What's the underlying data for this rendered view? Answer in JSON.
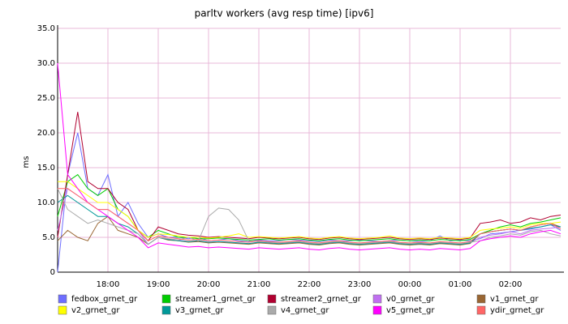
{
  "chart_data": {
    "type": "line",
    "title": "parltv workers (avg resp time) [ipv6]",
    "y_label": "ms",
    "categories": [
      null,
      null,
      null,
      null,
      null,
      "18:00",
      null,
      null,
      null,
      null,
      "19:00",
      null,
      null,
      null,
      null,
      "20:00",
      null,
      null,
      null,
      null,
      "21:00",
      null,
      null,
      null,
      null,
      "22:00",
      null,
      null,
      null,
      null,
      "23:00",
      null,
      null,
      null,
      null,
      "00:00",
      null,
      null,
      null,
      null,
      "01:00",
      null,
      null,
      null,
      null,
      "02:00",
      null,
      null,
      null,
      null,
      null
    ],
    "ylim": [
      0,
      35
    ],
    "yticks": [
      0,
      {
        "value": 5,
        "label": "5.0"
      },
      {
        "value": 10,
        "label": "10.0"
      },
      {
        "value": 15,
        "label": "15.0"
      },
      {
        "value": 20,
        "label": "20.0"
      },
      {
        "value": 25,
        "label": "25.0"
      },
      {
        "value": 30,
        "label": "30.0"
      },
      {
        "value": 35,
        "label": "35.0"
      }
    ],
    "grid": true,
    "series": [
      {
        "name": "fedbox_grnet_gr",
        "color": "#6e6eff",
        "values": [
          0,
          14,
          20,
          12,
          11,
          14,
          8,
          10,
          7,
          5,
          5.5,
          5,
          5,
          4.8,
          5,
          4.5,
          4.6,
          4.8,
          4.5,
          4.4,
          4.6,
          4.5,
          4.5,
          4.7,
          4.6,
          4.5,
          4.4,
          4.6,
          4.5,
          4.5,
          4.6,
          4.5,
          4.4,
          4.5,
          4.6,
          4.5,
          4.4,
          4.5,
          5.2,
          4.5,
          4.6,
          4.5,
          4.8,
          5.5,
          5.6,
          5.8,
          6,
          6.2,
          6.5,
          6.8,
          6
        ]
      },
      {
        "name": "streamer1_grnet_gr",
        "color": "#00cc00",
        "values": [
          8,
          13,
          14,
          12,
          11,
          12,
          9,
          8,
          6,
          5,
          6,
          5.5,
          5,
          5,
          4.8,
          4.8,
          4.9,
          4.8,
          4.7,
          4.6,
          4.7,
          4.8,
          4.6,
          4.7,
          4.8,
          4.6,
          4.5,
          4.7,
          4.8,
          4.6,
          4.5,
          4.6,
          4.7,
          4.8,
          4.6,
          4.5,
          4.6,
          4.5,
          4.7,
          4.6,
          4.5,
          4.7,
          5.5,
          6,
          6.5,
          6.8,
          6.5,
          7,
          7.2,
          7.5,
          7.8
        ]
      },
      {
        "name": "streamer2_grnet_gr",
        "color": "#b00030",
        "values": [
          5,
          14,
          23,
          13,
          12,
          12,
          10,
          9,
          6,
          4.5,
          6.5,
          6,
          5.5,
          5.3,
          5.2,
          5,
          5.1,
          5,
          4.9,
          4.8,
          5,
          4.9,
          4.8,
          4.9,
          5,
          4.8,
          4.7,
          4.9,
          5,
          4.8,
          4.7,
          4.8,
          4.9,
          5,
          4.8,
          4.7,
          4.8,
          4.7,
          4.9,
          4.8,
          4.7,
          4.9,
          7,
          7.2,
          7.5,
          7,
          7.2,
          7.8,
          7.5,
          8,
          8.2
        ]
      },
      {
        "name": "v0_grnet_gr",
        "color": "#c070f0",
        "values": [
          6,
          12,
          11,
          10,
          9,
          9,
          8,
          7,
          6,
          4,
          5,
          4.8,
          4.6,
          4.4,
          4.5,
          4.3,
          4.4,
          4.3,
          4.2,
          4.1,
          4.3,
          4.2,
          4.1,
          4.2,
          4.3,
          4.1,
          4,
          4.2,
          4.3,
          4.1,
          4,
          4.1,
          4.2,
          4.3,
          4.1,
          4,
          4.1,
          4,
          4.2,
          4.1,
          4,
          4.2,
          5,
          5.3,
          5.5,
          5.8,
          5.5,
          6,
          6.2,
          6.3,
          6.5
        ]
      },
      {
        "name": "v1_grnet_gr",
        "color": "#996633",
        "values": [
          4.5,
          6,
          5,
          4.5,
          7,
          8,
          6,
          5.5,
          5,
          4,
          5,
          4.6,
          4.5,
          4.3,
          4.4,
          4.2,
          4.3,
          4.2,
          4.1,
          4,
          4.2,
          4.1,
          4,
          4.1,
          4.2,
          4,
          3.9,
          4.1,
          4.2,
          4,
          3.9,
          4,
          4.1,
          4.2,
          4,
          3.9,
          4,
          3.9,
          4.1,
          4,
          3.9,
          4.1,
          5.5,
          5.8,
          6,
          6.2,
          6,
          6.5,
          6.8,
          7,
          6.5
        ]
      },
      {
        "name": "v2_grnet_gr",
        "color": "#ffff00",
        "values": [
          13,
          13,
          12,
          11,
          10,
          10,
          9,
          8,
          6,
          5,
          5.5,
          5.4,
          5.2,
          5,
          5,
          4.9,
          5,
          5.2,
          5.5,
          5,
          5.1,
          5,
          4.9,
          5,
          5.1,
          4.9,
          4.8,
          5,
          5.1,
          4.9,
          4.8,
          4.9,
          5,
          5.2,
          4.9,
          4.8,
          4.9,
          4.8,
          5,
          4.9,
          4.8,
          5,
          6,
          6.2,
          6.3,
          6.5,
          6.3,
          6.8,
          7,
          7,
          7.2
        ]
      },
      {
        "name": "v3_grnet_gr",
        "color": "#009999",
        "values": [
          10,
          11,
          10,
          9,
          8,
          8,
          7,
          6.5,
          5.5,
          4,
          5,
          4.7,
          4.5,
          4.4,
          4.5,
          4.3,
          4.4,
          4.3,
          4.2,
          4.1,
          4.3,
          4.2,
          4.1,
          4.2,
          4.3,
          4.1,
          4,
          4.2,
          4.3,
          4.1,
          4,
          4.1,
          4.2,
          4.3,
          4.1,
          4,
          4.1,
          4,
          4.2,
          4.1,
          4,
          4.2,
          5.5,
          5.8,
          6,
          6.2,
          6,
          6.3,
          6.5,
          6.8,
          6.5
        ]
      },
      {
        "name": "v4_grnet_gr",
        "color": "#aaaaaa",
        "values": [
          12,
          9,
          8,
          7,
          7.5,
          7,
          6.5,
          6,
          5.5,
          4,
          5,
          4.8,
          4.6,
          5,
          4.5,
          8,
          9.2,
          9,
          7.5,
          4.5,
          4.4,
          4.3,
          4.2,
          4.3,
          4.4,
          4.2,
          4.1,
          4.3,
          4.4,
          4.2,
          4.1,
          4.2,
          4.3,
          4.4,
          4.2,
          4.1,
          4.2,
          4.1,
          4.3,
          4.2,
          4.1,
          4.3,
          4.5,
          5,
          5.2,
          5.5,
          5.3,
          5.8,
          6,
          5.5,
          5.2
        ]
      },
      {
        "name": "v5_grnet_gr",
        "color": "#ff00ff",
        "values": [
          30,
          14,
          12,
          10,
          9,
          8,
          7,
          6,
          5,
          3.5,
          4.2,
          4,
          3.8,
          3.6,
          3.7,
          3.5,
          3.6,
          3.5,
          3.4,
          3.3,
          3.5,
          3.4,
          3.3,
          3.4,
          3.5,
          3.3,
          3.2,
          3.4,
          3.5,
          3.3,
          3.2,
          3.3,
          3.4,
          3.5,
          3.3,
          3.2,
          3.3,
          3.2,
          3.4,
          3.3,
          3.2,
          3.4,
          4.5,
          4.8,
          5,
          5.2,
          5,
          5.5,
          5.8,
          6,
          5.5
        ]
      },
      {
        "name": "ydir_grnet_gr",
        "color": "#ff6666",
        "values": [
          12,
          12,
          11,
          10,
          9,
          9,
          8,
          7,
          6,
          4.5,
          5.2,
          5,
          4.8,
          4.6,
          4.7,
          4.5,
          4.6,
          4.5,
          4.4,
          4.3,
          4.5,
          4.4,
          4.3,
          4.4,
          4.5,
          4.3,
          4.2,
          4.4,
          4.5,
          4.3,
          4.2,
          4.3,
          4.4,
          4.5,
          4.3,
          4.2,
          4.3,
          4.2,
          4.4,
          4.3,
          4.2,
          4.4,
          5.5,
          5.8,
          6,
          6.2,
          6,
          6.5,
          6.8,
          7,
          6.2
        ]
      }
    ]
  }
}
